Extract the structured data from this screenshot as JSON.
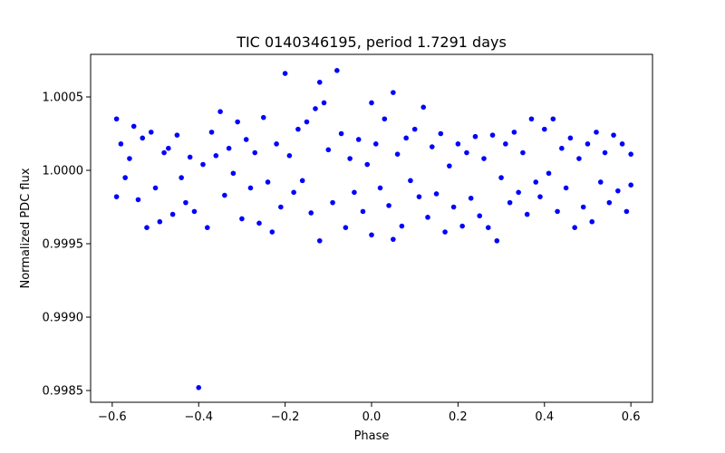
{
  "chart_data": {
    "type": "scatter",
    "title": "TIC 0140346195, period 1.7291 days",
    "xlabel": "Phase",
    "ylabel": "Normalized PDC flux",
    "xlim": [
      -0.65,
      0.65
    ],
    "ylim": [
      0.99842,
      1.00079
    ],
    "x_ticks": [
      -0.6,
      -0.4,
      -0.2,
      0.0,
      0.2,
      0.4,
      0.6
    ],
    "x_tick_labels": [
      "−0.6",
      "−0.4",
      "−0.2",
      "0.0",
      "0.2",
      "0.4",
      "0.6"
    ],
    "y_ticks": [
      0.9985,
      0.999,
      0.9995,
      1.0,
      1.0005
    ],
    "y_tick_labels": [
      "0.9985",
      "0.9990",
      "0.9995",
      "1.0000",
      "1.0005"
    ],
    "marker_color": "#0000ff",
    "grid": false,
    "series": [
      {
        "name": "flux",
        "points": [
          [
            -0.59,
            1.00035
          ],
          [
            -0.59,
            0.99982
          ],
          [
            -0.58,
            1.00018
          ],
          [
            -0.57,
            0.99995
          ],
          [
            -0.56,
            1.00008
          ],
          [
            -0.55,
            1.0003
          ],
          [
            -0.54,
            0.9998
          ],
          [
            -0.53,
            1.00022
          ],
          [
            -0.52,
            0.99961
          ],
          [
            -0.51,
            1.00026
          ],
          [
            -0.5,
            0.99988
          ],
          [
            -0.49,
            0.99965
          ],
          [
            -0.48,
            1.00012
          ],
          [
            -0.47,
            1.00015
          ],
          [
            -0.46,
            0.9997
          ],
          [
            -0.45,
            1.00024
          ],
          [
            -0.44,
            0.99995
          ],
          [
            -0.43,
            0.99978
          ],
          [
            -0.42,
            1.00009
          ],
          [
            -0.41,
            0.99972
          ],
          [
            -0.4,
            0.99852
          ],
          [
            -0.39,
            1.00004
          ],
          [
            -0.38,
            0.99961
          ],
          [
            -0.37,
            1.00026
          ],
          [
            -0.36,
            1.0001
          ],
          [
            -0.35,
            1.0004
          ],
          [
            -0.34,
            0.99983
          ],
          [
            -0.33,
            1.00015
          ],
          [
            -0.32,
            0.99998
          ],
          [
            -0.31,
            1.00033
          ],
          [
            -0.3,
            0.99967
          ],
          [
            -0.29,
            1.00021
          ],
          [
            -0.28,
            0.99988
          ],
          [
            -0.27,
            1.00012
          ],
          [
            -0.26,
            0.99964
          ],
          [
            -0.25,
            1.00036
          ],
          [
            -0.24,
            0.99992
          ],
          [
            -0.23,
            0.99958
          ],
          [
            -0.22,
            1.00018
          ],
          [
            -0.21,
            0.99975
          ],
          [
            -0.2,
            1.00066
          ],
          [
            -0.19,
            1.0001
          ],
          [
            -0.18,
            0.99985
          ],
          [
            -0.17,
            1.00028
          ],
          [
            -0.16,
            0.99993
          ],
          [
            -0.15,
            1.00033
          ],
          [
            -0.14,
            0.99971
          ],
          [
            -0.13,
            1.00042
          ],
          [
            -0.12,
            1.0006
          ],
          [
            -0.12,
            0.99952
          ],
          [
            -0.11,
            1.00046
          ],
          [
            -0.1,
            1.00014
          ],
          [
            -0.09,
            0.99978
          ],
          [
            -0.08,
            1.00068
          ],
          [
            -0.07,
            1.00025
          ],
          [
            -0.06,
            0.99961
          ],
          [
            -0.05,
            1.00008
          ],
          [
            -0.04,
            0.99985
          ],
          [
            -0.03,
            1.00021
          ],
          [
            -0.02,
            0.99972
          ],
          [
            -0.01,
            1.00004
          ],
          [
            0.0,
            1.00046
          ],
          [
            0.0,
            0.99956
          ],
          [
            0.01,
            1.00018
          ],
          [
            0.02,
            0.99988
          ],
          [
            0.03,
            1.00035
          ],
          [
            0.04,
            0.99976
          ],
          [
            0.05,
            1.00053
          ],
          [
            0.05,
            0.99953
          ],
          [
            0.06,
            1.00011
          ],
          [
            0.07,
            0.99962
          ],
          [
            0.08,
            1.00022
          ],
          [
            0.09,
            0.99993
          ],
          [
            0.1,
            1.00028
          ],
          [
            0.11,
            0.99982
          ],
          [
            0.12,
            1.00043
          ],
          [
            0.13,
            0.99968
          ],
          [
            0.14,
            1.00016
          ],
          [
            0.15,
            0.99984
          ],
          [
            0.16,
            1.00025
          ],
          [
            0.17,
            0.99958
          ],
          [
            0.18,
            1.00003
          ],
          [
            0.19,
            0.99975
          ],
          [
            0.2,
            1.00018
          ],
          [
            0.21,
            0.99962
          ],
          [
            0.22,
            1.00012
          ],
          [
            0.23,
            0.99981
          ],
          [
            0.24,
            1.00023
          ],
          [
            0.25,
            0.99969
          ],
          [
            0.26,
            1.00008
          ],
          [
            0.27,
            0.99961
          ],
          [
            0.28,
            1.00024
          ],
          [
            0.29,
            0.99952
          ],
          [
            0.3,
            0.99995
          ],
          [
            0.31,
            1.00018
          ],
          [
            0.32,
            0.99978
          ],
          [
            0.33,
            1.00026
          ],
          [
            0.34,
            0.99985
          ],
          [
            0.35,
            1.00012
          ],
          [
            0.36,
            0.9997
          ],
          [
            0.37,
            1.00035
          ],
          [
            0.38,
            0.99992
          ],
          [
            0.39,
            0.99982
          ],
          [
            0.4,
            1.00028
          ],
          [
            0.41,
            0.99998
          ],
          [
            0.42,
            1.00035
          ],
          [
            0.43,
            0.99972
          ],
          [
            0.44,
            1.00015
          ],
          [
            0.45,
            0.99988
          ],
          [
            0.46,
            1.00022
          ],
          [
            0.47,
            0.99961
          ],
          [
            0.48,
            1.00008
          ],
          [
            0.49,
            0.99975
          ],
          [
            0.5,
            1.00018
          ],
          [
            0.51,
            0.99965
          ],
          [
            0.52,
            1.00026
          ],
          [
            0.53,
            0.99992
          ],
          [
            0.54,
            1.00012
          ],
          [
            0.55,
            0.99978
          ],
          [
            0.56,
            1.00024
          ],
          [
            0.57,
            0.99986
          ],
          [
            0.58,
            1.00018
          ],
          [
            0.59,
            0.99972
          ],
          [
            0.6,
            1.00011
          ],
          [
            0.6,
            0.9999
          ]
        ]
      }
    ]
  }
}
